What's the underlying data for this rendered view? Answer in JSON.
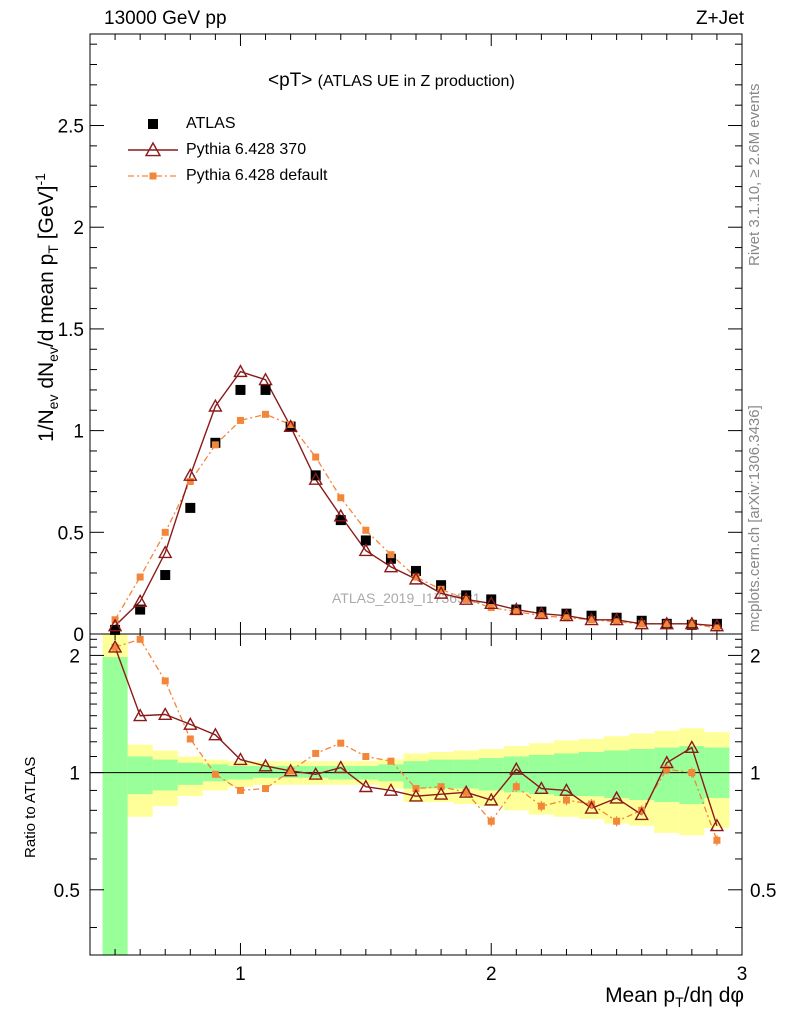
{
  "header": {
    "left": "13000 GeV pp",
    "right": "Z+Jet"
  },
  "side": {
    "top": "Rivet 3.1.10, ≥ 2.6M events",
    "bottom": "mcplots.cern.ch [arXiv:1306.3436]"
  },
  "chart_data": [
    {
      "type": "scatter",
      "title": "<pT>",
      "subtitle": "(ATLAS UE in Z production)",
      "watermark": "ATLAS_2019_I1736531",
      "ylabel_main": "1/N",
      "ylabel_sub1": "ev",
      "ylabel_mid": " dN",
      "ylabel_sub2": "ev",
      "ylabel_mid2": "/d mean p",
      "ylabel_sub3": "T",
      "ylabel_end": " [GeV]",
      "ylabel_sup": "-1",
      "xlim": [
        0.4,
        3.0
      ],
      "ylim": [
        0,
        2.95
      ],
      "yticks": [
        0,
        0.5,
        1,
        1.5,
        2,
        2.5
      ],
      "ytick_labels": [
        "0",
        "0.5",
        "1",
        "1.5",
        "2",
        "2.5"
      ],
      "xticks": [
        1,
        2,
        3
      ],
      "grid": false,
      "legend_position": "top-left",
      "x": [
        0.5,
        0.6,
        0.7,
        0.8,
        0.9,
        1.0,
        1.1,
        1.2,
        1.3,
        1.4,
        1.5,
        1.6,
        1.7,
        1.8,
        1.9,
        2.0,
        2.1,
        2.2,
        2.3,
        2.4,
        2.5,
        2.6,
        2.7,
        2.8,
        2.9
      ],
      "series": [
        {
          "name": "ATLAS",
          "color": "#000000",
          "marker": "square",
          "values": [
            0.02,
            0.12,
            0.29,
            0.62,
            0.94,
            1.2,
            1.2,
            1.02,
            0.78,
            0.56,
            0.46,
            0.37,
            0.31,
            0.24,
            0.19,
            0.17,
            0.12,
            0.11,
            0.1,
            0.09,
            0.08,
            0.065,
            0.05,
            0.045,
            0.05
          ]
        },
        {
          "name": "Pythia 6.428 370",
          "color": "#8b1a1a",
          "marker": "open-triangle",
          "values": [
            0.04,
            0.16,
            0.4,
            0.78,
            1.12,
            1.29,
            1.25,
            1.02,
            0.76,
            0.58,
            0.41,
            0.33,
            0.27,
            0.2,
            0.17,
            0.15,
            0.12,
            0.1,
            0.09,
            0.07,
            0.07,
            0.05,
            0.05,
            0.05,
            0.04
          ]
        },
        {
          "name": "Pythia 6.428 default",
          "color": "#f4863a",
          "marker": "small-square",
          "values": [
            0.07,
            0.28,
            0.5,
            0.75,
            0.93,
            1.05,
            1.08,
            1.03,
            0.87,
            0.67,
            0.51,
            0.39,
            0.28,
            0.22,
            0.17,
            0.13,
            0.11,
            0.09,
            0.08,
            0.07,
            0.06,
            0.05,
            0.05,
            0.05,
            0.03
          ]
        }
      ]
    },
    {
      "type": "line",
      "ylabel": "Ratio to ATLAS",
      "xlabel": "Mean p",
      "xlabel_sub": "T",
      "xlabel_end": "/dη dφ",
      "xlim": [
        0.4,
        3.0
      ],
      "ylim": [
        0.34,
        2.27
      ],
      "yticks": [
        0.5,
        1,
        2
      ],
      "ytick_labels": [
        "0.5",
        "1",
        "2"
      ],
      "xticks": [
        1,
        2,
        3
      ],
      "xtick_labels": [
        "1",
        "2",
        "3"
      ],
      "x": [
        0.5,
        0.6,
        0.7,
        0.8,
        0.9,
        1.0,
        1.1,
        1.2,
        1.3,
        1.4,
        1.5,
        1.6,
        1.7,
        1.8,
        1.9,
        2.0,
        2.1,
        2.2,
        2.3,
        2.4,
        2.5,
        2.6,
        2.7,
        2.8,
        2.9
      ],
      "bands": {
        "yellow_lo": [
          0.2,
          0.77,
          0.82,
          0.87,
          0.9,
          0.92,
          0.93,
          0.93,
          0.93,
          0.93,
          0.93,
          0.91,
          0.84,
          0.84,
          0.83,
          0.82,
          0.8,
          0.78,
          0.77,
          0.76,
          0.74,
          0.73,
          0.7,
          0.69,
          0.72
        ],
        "yellow_hi": [
          2.3,
          1.18,
          1.14,
          1.1,
          1.08,
          1.07,
          1.07,
          1.07,
          1.07,
          1.07,
          1.07,
          1.08,
          1.12,
          1.13,
          1.14,
          1.15,
          1.17,
          1.19,
          1.21,
          1.22,
          1.24,
          1.26,
          1.28,
          1.3,
          1.27
        ],
        "green_lo": [
          0.2,
          0.88,
          0.9,
          0.93,
          0.95,
          0.96,
          0.97,
          0.97,
          0.97,
          0.96,
          0.96,
          0.95,
          0.91,
          0.91,
          0.91,
          0.9,
          0.89,
          0.88,
          0.87,
          0.87,
          0.86,
          0.85,
          0.84,
          0.83,
          0.86
        ],
        "green_hi": [
          1.98,
          1.1,
          1.08,
          1.06,
          1.05,
          1.04,
          1.04,
          1.04,
          1.04,
          1.04,
          1.04,
          1.05,
          1.07,
          1.08,
          1.08,
          1.09,
          1.1,
          1.11,
          1.12,
          1.13,
          1.14,
          1.15,
          1.16,
          1.17,
          1.16
        ]
      },
      "series": [
        {
          "name": "Pythia 6.428 370",
          "color": "#8b1a1a",
          "values": [
            2.1,
            1.4,
            1.41,
            1.33,
            1.25,
            1.08,
            1.04,
            1.01,
            0.99,
            1.03,
            0.92,
            0.9,
            0.87,
            0.88,
            0.89,
            0.85,
            1.02,
            0.91,
            0.9,
            0.81,
            0.86,
            0.78,
            1.06,
            1.16,
            0.73
          ]
        },
        {
          "name": "Pythia 6.428 default",
          "color": "#f4863a",
          "values": [
            2.1,
            2.2,
            1.72,
            1.22,
            0.99,
            0.9,
            0.91,
            1.01,
            1.12,
            1.19,
            1.1,
            1.07,
            0.91,
            0.92,
            0.89,
            0.75,
            0.92,
            0.82,
            0.85,
            0.83,
            0.75,
            0.8,
            1.02,
            1.0,
            0.67
          ]
        }
      ]
    }
  ]
}
